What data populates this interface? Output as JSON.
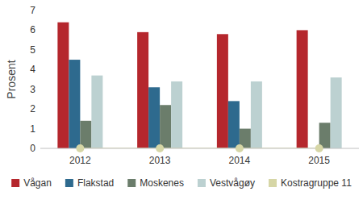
{
  "chart_data": {
    "type": "bar",
    "y_label": "Prosent",
    "categories": [
      "2012",
      "2013",
      "2014",
      "2015"
    ],
    "series": [
      {
        "name": "Vågan",
        "color": "#b5272d",
        "values": [
          6.4,
          5.9,
          5.8,
          6.0
        ]
      },
      {
        "name": "Flakstad",
        "color": "#2e6a8e",
        "values": [
          4.5,
          3.1,
          2.4,
          null
        ]
      },
      {
        "name": "Moskenes",
        "color": "#6b7d6b",
        "values": [
          1.4,
          2.2,
          1.0,
          1.3
        ]
      },
      {
        "name": "Vestvågøy",
        "color": "#bcd1d1",
        "values": [
          3.7,
          3.4,
          3.4,
          3.6
        ]
      },
      {
        "name": "Kostragruppe 11",
        "color": "#d6d6a6",
        "type": "line",
        "marker": "circle",
        "values": [
          0,
          0,
          0,
          0
        ]
      }
    ],
    "ylim": [
      0,
      7
    ],
    "yticks": [
      0,
      1,
      2,
      3,
      4,
      5,
      6,
      7
    ],
    "grid": false,
    "legend": "bottom"
  }
}
